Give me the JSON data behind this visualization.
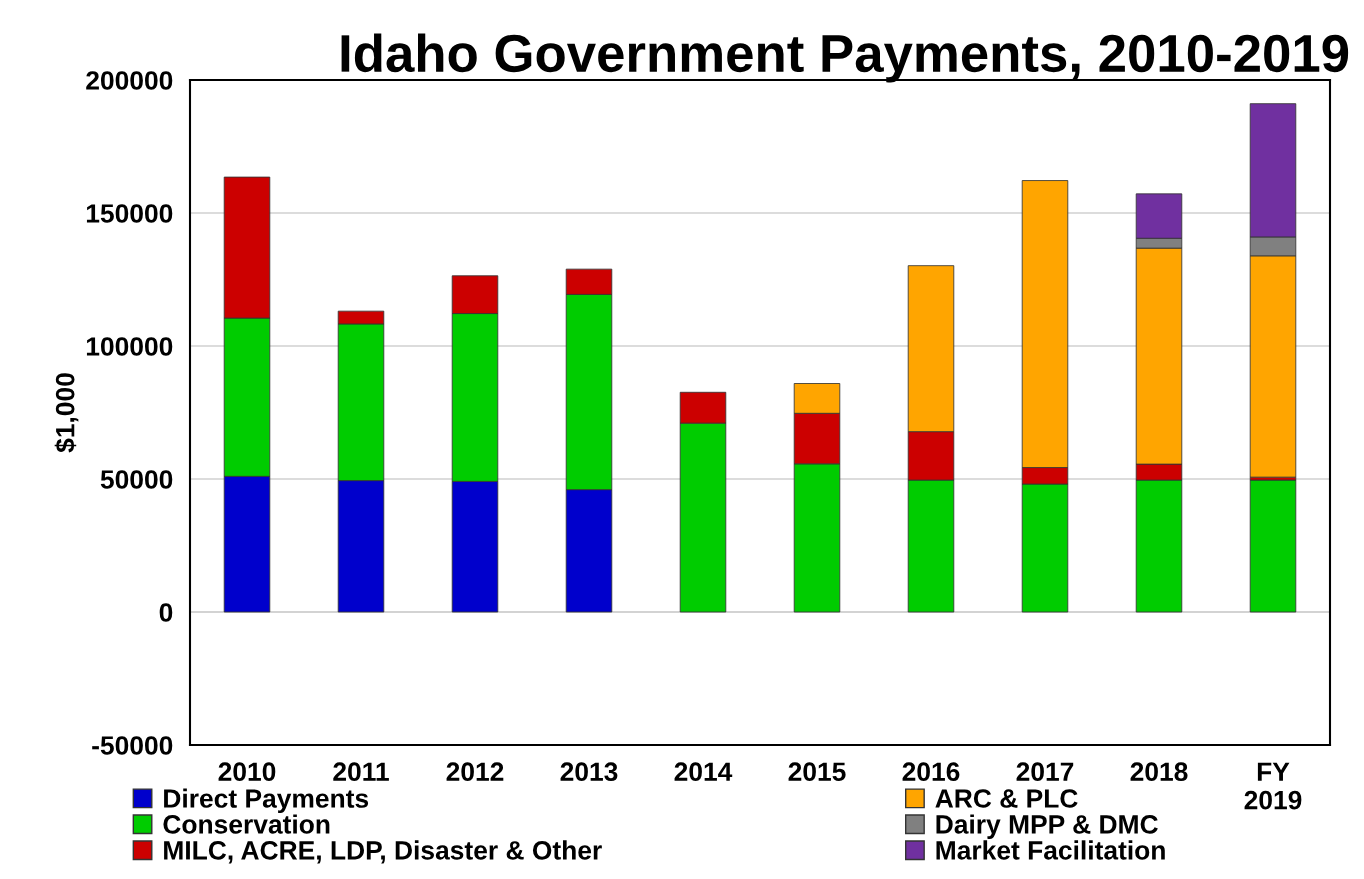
{
  "chart_data": {
    "type": "bar",
    "title": "Idaho Government Payments, 2010-2019",
    "ylabel": "$1,000",
    "categories": [
      "2010",
      "2011",
      "2012",
      "2013",
      "2014",
      "2015",
      "2016",
      "2017",
      "2018",
      "FY\n2019"
    ],
    "stacked": true,
    "series": [
      {
        "name": "Direct Payments",
        "color": "#0000cc",
        "values": [
          51000,
          49400,
          49100,
          46000,
          null,
          null,
          null,
          null,
          null,
          null
        ]
      },
      {
        "name": "Conservation",
        "color": "#00cc00",
        "values": [
          59500,
          58900,
          63100,
          73400,
          71000,
          55700,
          49600,
          48100,
          49600,
          49600
        ]
      },
      {
        "name": "MILC, ACRE, LDP, Disaster & Other",
        "color": "#cc0000",
        "values": [
          53000,
          4800,
          14200,
          9500,
          11600,
          19000,
          18200,
          6200,
          6000,
          1100
        ]
      },
      {
        "name": "ARC & PLC",
        "color": "#ffa500",
        "values": [
          null,
          null,
          null,
          null,
          null,
          11200,
          62400,
          107900,
          81200,
          83200
        ]
      },
      {
        "name": "Dairy MPP & DMC",
        "color": "#808080",
        "values": [
          null,
          null,
          null,
          null,
          null,
          null,
          null,
          null,
          3700,
          7100
        ]
      },
      {
        "name": "Market Facilitation",
        "color": "#7030a0",
        "values": [
          null,
          null,
          null,
          null,
          null,
          null,
          null,
          null,
          16700,
          50100
        ]
      }
    ],
    "ylim": [
      -50000,
      200000
    ],
    "yticks": [
      -50000,
      0,
      50000,
      100000,
      150000,
      200000
    ],
    "grid": "y",
    "legend": "bottom"
  }
}
